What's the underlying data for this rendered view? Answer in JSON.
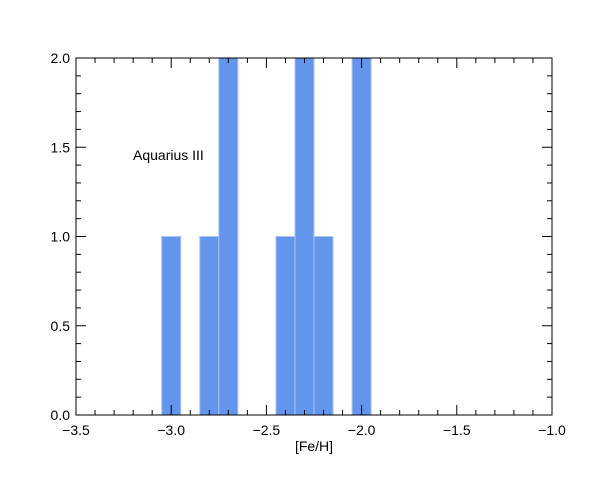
{
  "chart_data": {
    "type": "bar",
    "xlabel": "[Fe/H]",
    "ylabel": "",
    "xlim": [
      -3.5,
      -1.0
    ],
    "ylim": [
      0.0,
      2.0
    ],
    "xticks": [
      "−3.5",
      "−3.0",
      "−2.5",
      "−2.0",
      "−1.5",
      "−1.0"
    ],
    "yticks": [
      "0.0",
      "0.5",
      "1.0",
      "1.5",
      "2.0"
    ],
    "annotation": "Aquarius III",
    "bar_color": "#6495ED",
    "bar_edge_color": "#A9C4F5",
    "bins": [
      {
        "x0": -3.05,
        "x1": -2.95,
        "value": 1
      },
      {
        "x0": -2.85,
        "x1": -2.75,
        "value": 1
      },
      {
        "x0": -2.75,
        "x1": -2.65,
        "value": 2
      },
      {
        "x0": -2.45,
        "x1": -2.35,
        "value": 1
      },
      {
        "x0": -2.35,
        "x1": -2.25,
        "value": 2
      },
      {
        "x0": -2.25,
        "x1": -2.15,
        "value": 1
      },
      {
        "x0": -2.05,
        "x1": -1.95,
        "value": 2
      }
    ]
  }
}
